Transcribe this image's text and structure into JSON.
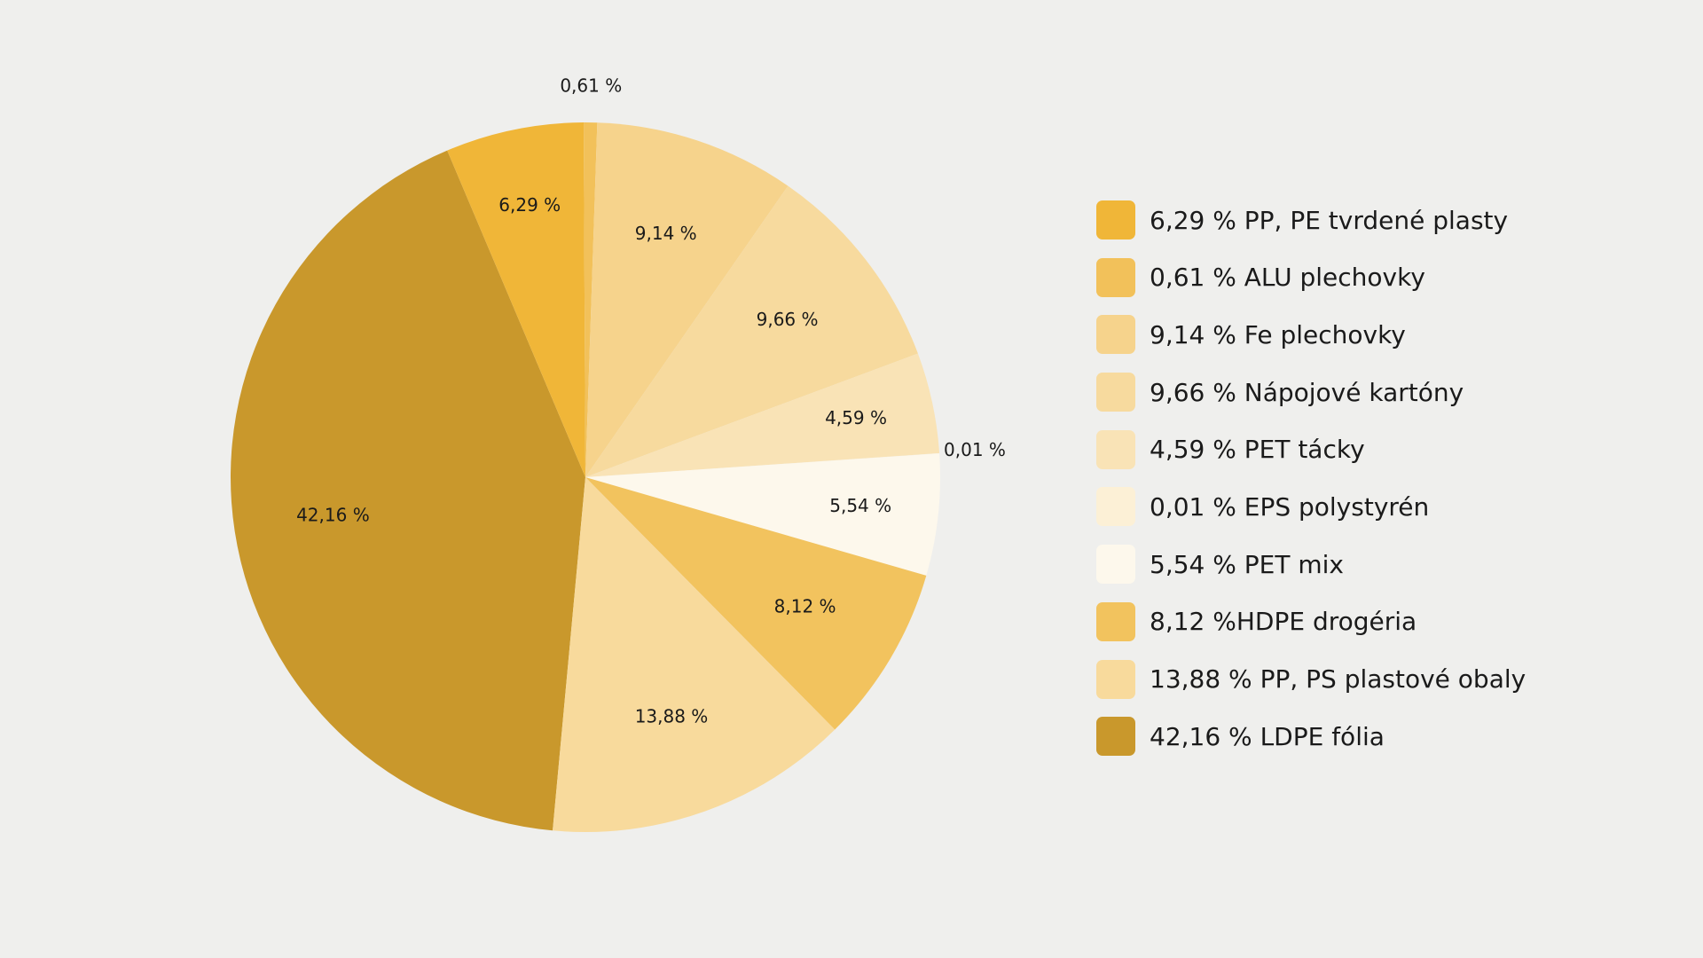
{
  "chart_data": {
    "type": "pie",
    "title": "",
    "slices": [
      {
        "label": "LDPE fólia",
        "value": 42.16,
        "value_label": "42,16 %",
        "legend": "42,16 % LDPE fólia",
        "color": "#c9982c"
      },
      {
        "label": "PP, PE tvrdené plasty",
        "value": 6.29,
        "value_label": "6,29 %",
        "legend": "6,29 % PP, PE tvrdené plasty",
        "color": "#f0b638"
      },
      {
        "label": "ALU plechovky",
        "value": 0.61,
        "value_label": "0,61 %",
        "legend": "0,61 % ALU plechovky",
        "color": "#f2c15a"
      },
      {
        "label": "Fe plechovky",
        "value": 9.14,
        "value_label": "9,14 %",
        "legend": "9,14 % Fe plechovky",
        "color": "#f6d38c"
      },
      {
        "label": "Nápojové kartóny",
        "value": 9.66,
        "value_label": "9,66 %",
        "legend": "9,66 % Nápojové kartóny",
        "color": "#f7da9e"
      },
      {
        "label": "PET tácky",
        "value": 4.59,
        "value_label": "4,59 %",
        "legend": "4,59 % PET tácky",
        "color": "#f9e3b6"
      },
      {
        "label": "EPS polystyrén",
        "value": 0.01,
        "value_label": "0,01 %",
        "legend": "0,01 % EPS polystyrén",
        "color": "#fcf0d6"
      },
      {
        "label": "PET mix",
        "value": 5.54,
        "value_label": "5,54 %",
        "legend": "5,54 % PET mix",
        "color": "#fdf8ec"
      },
      {
        "label": "HDPE drogéria",
        "value": 8.12,
        "value_label": "8,12 %",
        "legend": "8,12 %HDPE drogéria",
        "color": "#f2c35e"
      },
      {
        "label": "PP, PS plastové obaly",
        "value": 13.88,
        "value_label": "13,88 %",
        "legend": "13,88 % PP, PS plastové obaly",
        "color": "#f8da9c"
      }
    ],
    "legend_order": [
      1,
      2,
      3,
      4,
      5,
      6,
      7,
      8,
      9,
      0
    ],
    "legend_position": "right"
  }
}
